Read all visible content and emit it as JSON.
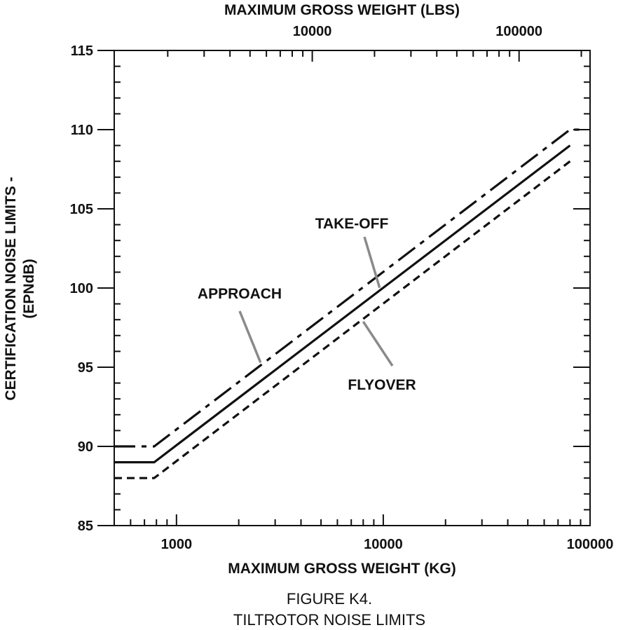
{
  "chart_data": {
    "type": "line",
    "title": "",
    "top_axis_title": "MAXIMUM GROSS WEIGHT (LBS)",
    "top_tick_labels": [
      "10000",
      "100000"
    ],
    "xlabel": "MAXIMUM GROSS WEIGHT (KG)",
    "ylabel_line1": "CERTIFICATION NOISE LIMITS -",
    "ylabel_line2": "(EPNdB)",
    "x_scale": "log",
    "xlim": [
      500,
      100000
    ],
    "ylim": [
      85,
      115
    ],
    "x_tick_labels": [
      "1000",
      "10000",
      "100000"
    ],
    "y_tick_labels": [
      "85",
      "90",
      "95",
      "100",
      "105",
      "110",
      "115"
    ],
    "grid": false,
    "series": [
      {
        "name": "APPROACH",
        "style": "dashdot",
        "points": [
          [
            500,
            90
          ],
          [
            780,
            90
          ],
          [
            80000,
            110
          ],
          [
            90000,
            110
          ]
        ]
      },
      {
        "name": "TAKE-OFF",
        "style": "solid",
        "points": [
          [
            500,
            89
          ],
          [
            780,
            89
          ],
          [
            80000,
            109
          ]
        ]
      },
      {
        "name": "FLYOVER",
        "style": "dashed",
        "points": [
          [
            500,
            88
          ],
          [
            780,
            88
          ],
          [
            80000,
            108
          ]
        ]
      }
    ],
    "annotations": [
      {
        "text": "APPROACH",
        "points_to": "APPROACH"
      },
      {
        "text": "TAKE-OFF",
        "points_to": "TAKE-OFF"
      },
      {
        "text": "FLYOVER",
        "points_to": "FLYOVER"
      }
    ]
  },
  "caption": {
    "line1": "FIGURE K4.",
    "line2": "TILTROTOR NOISE LIMITS"
  }
}
